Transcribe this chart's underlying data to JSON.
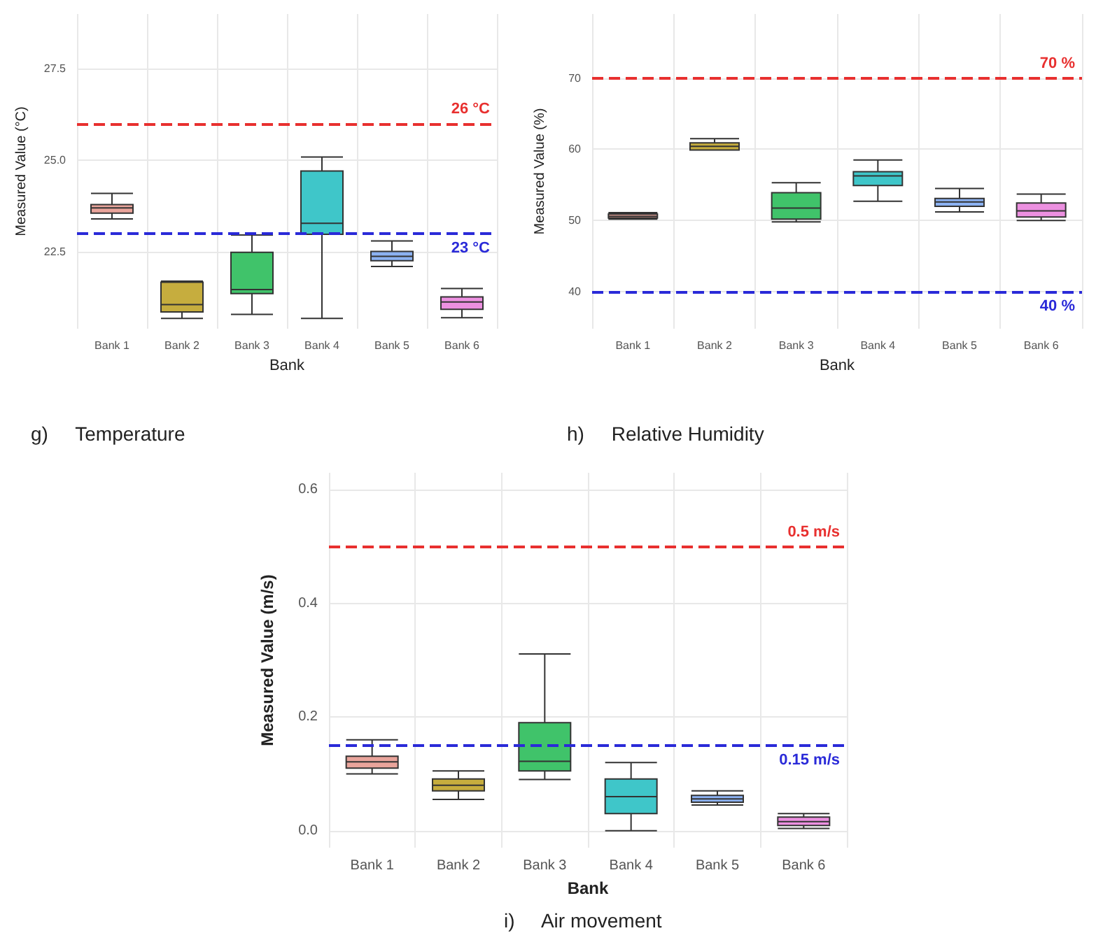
{
  "chart_data": [
    {
      "type": "box",
      "title": "g)     Temperature",
      "xlabel": "Bank",
      "ylabel": "Measured Value (°C)",
      "categories": [
        "Bank 1",
        "Bank 2",
        "Bank 3",
        "Bank 4",
        "Bank 5",
        "Bank 6"
      ],
      "boxes": [
        {
          "low": 23.4,
          "q1": 23.56,
          "median": 23.7,
          "q3": 23.79,
          "high": 24.1
        },
        {
          "low": 20.68,
          "q1": 20.86,
          "median": 21.06,
          "q3": 21.67,
          "high": 21.7
        },
        {
          "low": 20.79,
          "q1": 21.36,
          "median": 21.47,
          "q3": 22.49,
          "high": 22.96
        },
        {
          "low": 20.68,
          "q1": 22.98,
          "median": 23.28,
          "q3": 24.71,
          "high": 25.09
        },
        {
          "low": 22.1,
          "q1": 22.26,
          "median": 22.38,
          "q3": 22.51,
          "high": 22.8
        },
        {
          "low": 20.7,
          "q1": 20.93,
          "median": 21.13,
          "q3": 21.27,
          "high": 21.5
        }
      ],
      "colors": [
        "#e9a49b",
        "#c6ad3e",
        "#40c36a",
        "#3fc6c9",
        "#8cb2f2",
        "#ec90e0"
      ],
      "ylim": [
        20.4,
        29
      ],
      "yticks": [
        22.5,
        {
          "value": 25,
          "label": "25.0"
        },
        27.5
      ],
      "grid": true,
      "ref_lines": [
        {
          "axis": "y",
          "value": 26,
          "label": "26 °C",
          "color": "#e8302f",
          "line_style": "dashed"
        },
        {
          "axis": "y",
          "value": 23,
          "label": "23 °C",
          "color": "#2a2ad8",
          "line_style": "dashed"
        }
      ]
    },
    {
      "type": "box",
      "title": "h)     Relative Humidity",
      "xlabel": "Bank",
      "ylabel": "Measured Value (%)",
      "categories": [
        "Bank 1",
        "Bank 2",
        "Bank 3",
        "Bank 4",
        "Bank 5",
        "Bank 6"
      ],
      "boxes": [
        {
          "low": 50.2,
          "q1": 50.35,
          "median": 50.6,
          "q3": 50.9,
          "high": 51.1
        },
        {
          "low": 59.9,
          "q1": 59.9,
          "median": 60.4,
          "q3": 60.9,
          "high": 61.5
        },
        {
          "low": 49.8,
          "q1": 50.2,
          "median": 51.75,
          "q3": 53.9,
          "high": 55.3
        },
        {
          "low": 52.7,
          "q1": 54.9,
          "median": 56.25,
          "q3": 56.85,
          "high": 58.5
        },
        {
          "low": 51.2,
          "q1": 52,
          "median": 52.6,
          "q3": 53.1,
          "high": 54.5
        },
        {
          "low": 50,
          "q1": 50.5,
          "median": 51.35,
          "q3": 52.45,
          "high": 53.7
        }
      ],
      "colors": [
        "#e9a49b",
        "#c6ad3e",
        "#40c36a",
        "#3fc6c9",
        "#8cb2f2",
        "#ec90e0"
      ],
      "ylim": [
        34.8,
        79
      ],
      "yticks": [
        40,
        50,
        60,
        70
      ],
      "grid": true,
      "ref_lines": [
        {
          "axis": "y",
          "value": 70,
          "label": "70 %",
          "color": "#e8302f",
          "line_style": "dashed"
        },
        {
          "axis": "y",
          "value": 40,
          "label": "40 %",
          "color": "#2a2ad8",
          "line_style": "dashed"
        }
      ]
    },
    {
      "type": "box",
      "title": "i)     Air movement",
      "xlabel": "Bank",
      "ylabel": "Measured Value (m/s)",
      "categories": [
        "Bank 1",
        "Bank 2",
        "Bank 3",
        "Bank 4",
        "Bank 5",
        "Bank 6"
      ],
      "boxes": [
        {
          "low": 0.1,
          "q1": 0.11,
          "median": 0.121,
          "q3": 0.131,
          "high": 0.16
        },
        {
          "low": 0.055,
          "q1": 0.07,
          "median": 0.08,
          "q3": 0.091,
          "high": 0.105
        },
        {
          "low": 0.09,
          "q1": 0.105,
          "median": 0.122,
          "q3": 0.19,
          "high": 0.311
        },
        {
          "low": 0,
          "q1": 0.03,
          "median": 0.06,
          "q3": 0.091,
          "high": 0.12
        },
        {
          "low": 0.045,
          "q1": 0.05,
          "median": 0.056,
          "q3": 0.062,
          "high": 0.07
        },
        {
          "low": 0.004,
          "q1": 0.009,
          "median": 0.016,
          "q3": 0.024,
          "high": 0.03
        }
      ],
      "colors": [
        "#e9a49b",
        "#c6ad3e",
        "#40c36a",
        "#3fc6c9",
        "#8cb2f2",
        "#ec90e0"
      ],
      "ylim": [
        -0.03,
        0.63
      ],
      "yticks": [
        {
          "value": 0,
          "label": "0.0"
        },
        {
          "value": 0.2,
          "label": "0.2"
        },
        {
          "value": 0.4,
          "label": "0.4"
        },
        {
          "value": 0.6,
          "label": "0.6"
        }
      ],
      "grid": true,
      "ref_lines": [
        {
          "axis": "y",
          "value": 0.5,
          "label": "0.5 m/s",
          "color": "#e8302f",
          "line_style": "dashed"
        },
        {
          "axis": "y",
          "value": 0.15,
          "label": "0.15 m/s",
          "color": "#2a2ad8",
          "line_style": "dashed"
        }
      ]
    }
  ]
}
